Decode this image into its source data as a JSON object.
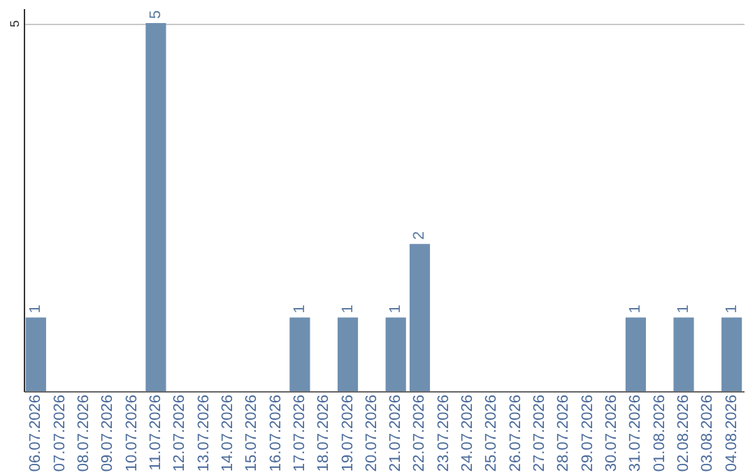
{
  "chart_data": {
    "type": "bar",
    "categories": [
      "06.07.2026",
      "07.07.2026",
      "08.07.2026",
      "09.07.2026",
      "10.07.2026",
      "11.07.2026",
      "12.07.2026",
      "13.07.2026",
      "14.07.2026",
      "15.07.2026",
      "16.07.2026",
      "17.07.2026",
      "18.07.2026",
      "19.07.2026",
      "20.07.2026",
      "21.07.2026",
      "22.07.2026",
      "23.07.2026",
      "24.07.2026",
      "25.07.2026",
      "26.07.2026",
      "27.07.2026",
      "28.07.2026",
      "29.07.2026",
      "30.07.2026",
      "31.07.2026",
      "01.08.2026",
      "02.08.2026",
      "03.08.2026",
      "04.08.2026"
    ],
    "values": [
      1,
      0,
      0,
      0,
      0,
      5,
      0,
      0,
      0,
      0,
      0,
      1,
      0,
      1,
      0,
      1,
      2,
      0,
      0,
      0,
      0,
      0,
      0,
      0,
      0,
      1,
      0,
      1,
      0,
      1
    ],
    "value_labels": [
      "1",
      null,
      null,
      null,
      null,
      "5",
      null,
      null,
      null,
      null,
      null,
      "1",
      null,
      "1",
      null,
      "1",
      "2",
      null,
      null,
      null,
      null,
      null,
      null,
      null,
      null,
      "1",
      null,
      "1",
      null,
      "1"
    ],
    "color": "#6f8fb0",
    "ylim": [
      0,
      5.2
    ],
    "yticks": [
      5
    ],
    "grid": "y"
  }
}
